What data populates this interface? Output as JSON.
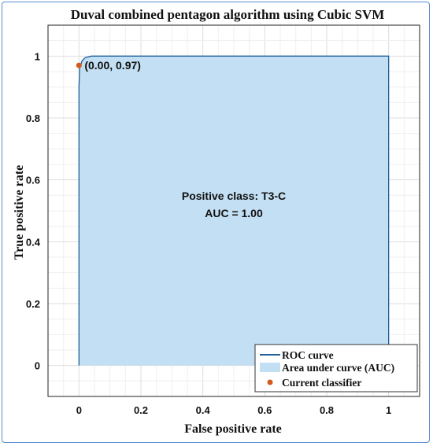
{
  "chart_data": {
    "type": "area",
    "title": "Duval combined pentagon algorithm using Cubic SVM",
    "xlabel": "False positive rate",
    "ylabel": "True positive rate",
    "xlim": [
      -0.1,
      1.1
    ],
    "ylim": [
      -0.1,
      1.1
    ],
    "xticks": [
      0,
      0.2,
      0.4,
      0.6,
      0.8,
      1
    ],
    "yticks": [
      0,
      0.2,
      0.4,
      0.6,
      0.8,
      1
    ],
    "xtick_labels": [
      "0",
      "0.2",
      "0.4",
      "0.6",
      "0.8",
      "1"
    ],
    "ytick_labels": [
      "0",
      "0.2",
      "0.4",
      "0.6",
      "0.8",
      "1"
    ],
    "grid": true,
    "series": [
      {
        "name": "ROC curve",
        "x": [
          0,
          0.0,
          0.002,
          0.005,
          0.01,
          0.02,
          0.04,
          0.1,
          1.0
        ],
        "y": [
          0,
          0.9,
          0.96,
          0.97,
          0.985,
          0.995,
          1.0,
          1.0,
          1.0
        ]
      }
    ],
    "area_label": "Area under curve (AUC)",
    "current_classifier": {
      "name": "Current classifier",
      "x": 0.0,
      "y": 0.97,
      "label": "(0.00, 0.97)"
    },
    "annotation": {
      "line1": "Positive class: T3-C",
      "line2": "AUC = 1.00"
    },
    "legend_position": "bottom-right",
    "colors": {
      "roc_line": "#1f5f9a",
      "auc_fill": "#c3dff3",
      "point": "#d45a1e",
      "grid": "#e6e6e6",
      "frame": "#5b8bd0"
    }
  }
}
